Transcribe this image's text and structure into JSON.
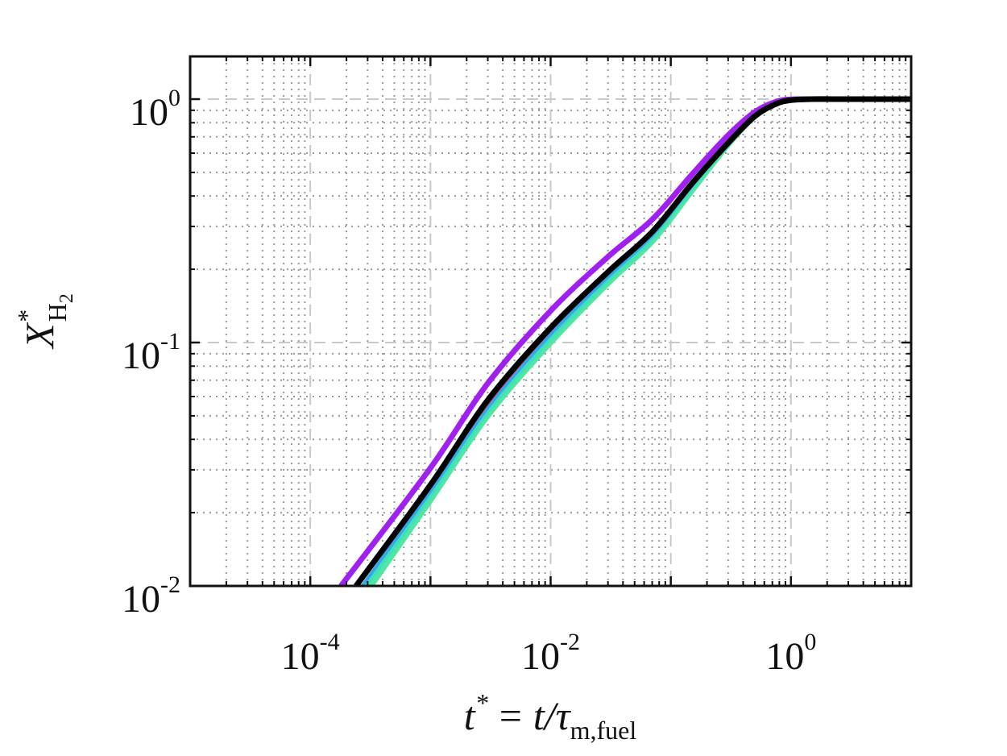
{
  "chart_data": {
    "type": "line",
    "x_scale": "log",
    "y_scale": "log",
    "xlim": [
      1e-05,
      10
    ],
    "ylim": [
      0.01,
      1
    ],
    "grid": true,
    "xlabel": {
      "base": "t",
      "sup": "*",
      "equals": "=",
      "rhs": "t/τ",
      "sub": "m,fuel"
    },
    "ylabel": {
      "base": "X",
      "sup": "*",
      "sub": "H",
      "sub_sub": "2"
    },
    "x_ticks": [
      {
        "value": 0.0001,
        "base": "10",
        "exp": "-4"
      },
      {
        "value": 0.01,
        "base": "10",
        "exp": "-2"
      },
      {
        "value": 1,
        "base": "10",
        "exp": "0"
      }
    ],
    "y_ticks": [
      {
        "value": 0.01,
        "base": "10",
        "exp": "-2"
      },
      {
        "value": 0.1,
        "base": "10",
        "exp": "-1"
      },
      {
        "value": 1,
        "base": "10",
        "exp": "0"
      }
    ],
    "series": [
      {
        "color": "#50e8a0",
        "width": 7,
        "x": [
          0.00032,
          0.001,
          0.003,
          0.01,
          0.03,
          0.07,
          0.15,
          0.3,
          0.5,
          0.75,
          1.0,
          1.5,
          3,
          10
        ],
        "y": [
          0.01,
          0.0225,
          0.05,
          0.1,
          0.175,
          0.26,
          0.42,
          0.65,
          0.85,
          0.96,
          0.995,
          1.0,
          1.0,
          1.0
        ]
      },
      {
        "color": "#3fe0c0",
        "width": 5,
        "x": [
          0.00029,
          0.001,
          0.003,
          0.01,
          0.03,
          0.07,
          0.15,
          0.3,
          0.5,
          0.75,
          1.0,
          1.5,
          3,
          10
        ],
        "y": [
          0.01,
          0.0235,
          0.052,
          0.104,
          0.18,
          0.268,
          0.43,
          0.66,
          0.86,
          0.965,
          0.997,
          1.0,
          1.0,
          1.0
        ]
      },
      {
        "color": "#35a8e8",
        "width": 4,
        "x": [
          0.00027,
          0.001,
          0.003,
          0.01,
          0.03,
          0.07,
          0.15,
          0.3,
          0.5,
          0.75,
          1.0,
          1.5,
          3,
          10
        ],
        "y": [
          0.01,
          0.0245,
          0.054,
          0.108,
          0.186,
          0.275,
          0.44,
          0.67,
          0.87,
          0.97,
          1.0,
          1.0,
          1.0,
          1.0
        ]
      },
      {
        "color": "#e0306a",
        "width": 3,
        "x": [
          0.00025,
          0.001,
          0.003,
          0.01,
          0.03,
          0.07,
          0.15,
          0.3,
          0.5,
          0.75,
          1.0,
          1.5,
          3,
          10
        ],
        "y": [
          0.01,
          0.0255,
          0.056,
          0.112,
          0.192,
          0.282,
          0.45,
          0.68,
          0.875,
          0.97,
          0.998,
          1.0,
          1.0,
          1.0
        ]
      },
      {
        "color": "#a020f0",
        "width": 7,
        "x": [
          0.00018,
          0.001,
          0.003,
          0.01,
          0.03,
          0.07,
          0.15,
          0.3,
          0.5,
          0.75,
          1.0,
          1.5,
          3,
          10
        ],
        "y": [
          0.01,
          0.0305,
          0.068,
          0.135,
          0.225,
          0.32,
          0.49,
          0.71,
          0.885,
          0.975,
          0.998,
          1.0,
          1.0,
          1.0
        ]
      },
      {
        "color": "#000000",
        "width": 7,
        "x": [
          0.00024,
          0.001,
          0.003,
          0.01,
          0.03,
          0.07,
          0.15,
          0.3,
          0.5,
          0.75,
          1.0,
          1.5,
          3,
          10
        ],
        "y": [
          0.01,
          0.026,
          0.058,
          0.115,
          0.195,
          0.285,
          0.45,
          0.66,
          0.85,
          0.955,
          0.99,
          1.0,
          1.0,
          1.0
        ]
      }
    ]
  }
}
